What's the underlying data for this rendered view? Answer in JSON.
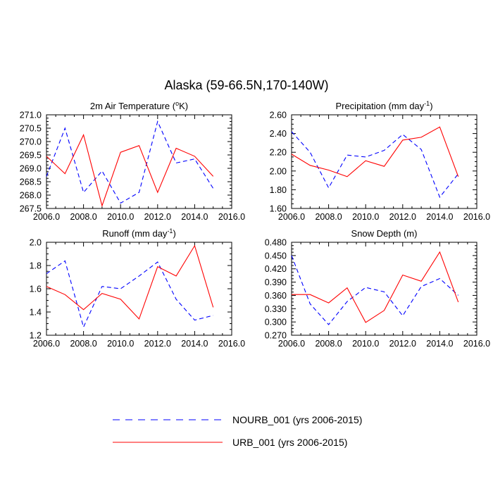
{
  "figure": {
    "title": "Alaska (59-66.5N,170-140W)"
  },
  "colors": {
    "nourb": "#0000ff",
    "urb": "#ff0000",
    "axes": "#000000"
  },
  "legend": {
    "entries": [
      {
        "series": "NOURB_001",
        "label": "NOURB_001 (yrs 2006-2015)",
        "style": "dashed"
      },
      {
        "series": "URB_001",
        "label": "URB_001 (yrs 2006-2015)",
        "style": "solid"
      }
    ]
  },
  "chart_data": [
    {
      "type": "line",
      "title": "2m Air Temperature (°K)",
      "title_parts": {
        "main": "2m Air Temperature (",
        "sup": "o",
        "rest": "K)"
      },
      "xlim": [
        2006,
        2016
      ],
      "ylim": [
        267.5,
        271.0
      ],
      "x_ticks": [
        "2006.0",
        "2008.0",
        "2010.0",
        "2012.0",
        "2014.0",
        "2016.0"
      ],
      "y_ticks": [
        "267.5",
        "268.0",
        "268.5",
        "269.0",
        "269.5",
        "270.0",
        "270.5",
        "271.0"
      ],
      "x": [
        2006,
        2007,
        2008,
        2009,
        2010,
        2011,
        2012,
        2013,
        2014,
        2015
      ],
      "series": [
        {
          "name": "NOURB_001",
          "values": [
            268.7,
            270.5,
            268.1,
            268.9,
            267.7,
            268.1,
            270.75,
            269.2,
            269.35,
            268.25
          ]
        },
        {
          "name": "URB_001",
          "values": [
            269.45,
            268.8,
            270.25,
            267.6,
            269.6,
            269.85,
            268.1,
            269.75,
            269.45,
            268.7
          ]
        }
      ]
    },
    {
      "type": "line",
      "title": "Precipitation (mm day-1)",
      "title_parts": {
        "main": "Precipitation (mm day",
        "sup": "-1",
        "rest": ")"
      },
      "xlim": [
        2006,
        2016
      ],
      "ylim": [
        1.6,
        2.6
      ],
      "x_ticks": [
        "2006.0",
        "2008.0",
        "2010.0",
        "2012.0",
        "2014.0",
        "2016.0"
      ],
      "y_ticks": [
        "1.60",
        "1.80",
        "2.00",
        "2.20",
        "2.40",
        "2.60"
      ],
      "x": [
        2006,
        2007,
        2008,
        2009,
        2010,
        2011,
        2012,
        2013,
        2014,
        2015
      ],
      "series": [
        {
          "name": "NOURB_001",
          "values": [
            2.42,
            2.2,
            1.82,
            2.17,
            2.15,
            2.22,
            2.39,
            2.23,
            1.72,
            1.97
          ]
        },
        {
          "name": "URB_001",
          "values": [
            2.18,
            2.06,
            2.01,
            1.94,
            2.11,
            2.05,
            2.33,
            2.36,
            2.47,
            1.94
          ]
        }
      ]
    },
    {
      "type": "line",
      "title": "Runoff (mm day-1)",
      "title_parts": {
        "main": "Runoff (mm day",
        "sup": "-1",
        "rest": ")"
      },
      "xlim": [
        2006,
        2016
      ],
      "ylim": [
        1.2,
        2.0
      ],
      "x_ticks": [
        "2006.0",
        "2008.0",
        "2010.0",
        "2012.0",
        "2014.0",
        "2016.0"
      ],
      "y_ticks": [
        "1.2",
        "1.4",
        "1.6",
        "1.8",
        "2.0"
      ],
      "x": [
        2006,
        2007,
        2008,
        2009,
        2010,
        2011,
        2012,
        2013,
        2014,
        2015
      ],
      "series": [
        {
          "name": "NOURB_001",
          "values": [
            1.73,
            1.84,
            1.27,
            1.62,
            1.6,
            1.71,
            1.83,
            1.51,
            1.33,
            1.37
          ]
        },
        {
          "name": "URB_001",
          "values": [
            1.62,
            1.55,
            1.42,
            1.56,
            1.51,
            1.34,
            1.79,
            1.71,
            1.97,
            1.44
          ]
        }
      ]
    },
    {
      "type": "line",
      "title": "Snow Depth (m)",
      "title_parts": {
        "main": "Snow Depth (m)",
        "sup": "",
        "rest": ""
      },
      "xlim": [
        2006,
        2016
      ],
      "ylim": [
        0.27,
        0.48
      ],
      "x_ticks": [
        "2006.0",
        "2008.0",
        "2010.0",
        "2012.0",
        "2014.0",
        "2016.0"
      ],
      "y_ticks": [
        "0.270",
        "0.300",
        "0.330",
        "0.360",
        "0.390",
        "0.420",
        "0.450",
        "0.480"
      ],
      "x": [
        2006,
        2007,
        2008,
        2009,
        2010,
        2011,
        2012,
        2013,
        2014,
        2015
      ],
      "series": [
        {
          "name": "NOURB_001",
          "values": [
            0.45,
            0.341,
            0.294,
            0.346,
            0.378,
            0.368,
            0.314,
            0.38,
            0.398,
            0.36
          ]
        },
        {
          "name": "URB_001",
          "values": [
            0.362,
            0.362,
            0.343,
            0.377,
            0.299,
            0.326,
            0.406,
            0.392,
            0.458,
            0.345
          ]
        }
      ]
    }
  ]
}
